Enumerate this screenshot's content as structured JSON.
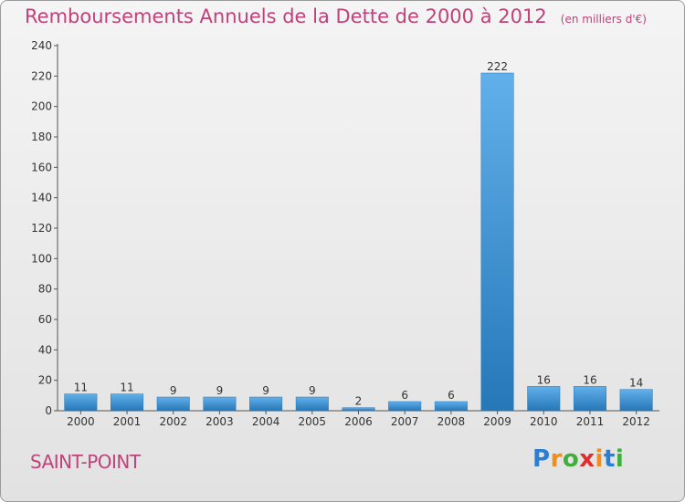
{
  "title": "Remboursements Annuels de la Dette de 2000 à 2012",
  "unit_note": "(en milliers d'€)",
  "place_name": "SAINT-POINT",
  "logo": {
    "letters": [
      "P",
      "r",
      "o",
      "x",
      "i",
      "t",
      "i"
    ],
    "colors": [
      "#2a7fd4",
      "#f28c1a",
      "#3fae3a",
      "#e02e2e",
      "#f28c1a",
      "#2a7fd4",
      "#3fae3a"
    ]
  },
  "colors": {
    "bar": "#3a8fd8",
    "bar_light": "#62b0ea",
    "bar_dark": "#2577b8",
    "text": "#333333",
    "accent": "#c0427a"
  },
  "chart_data": {
    "type": "bar",
    "title": "Remboursements Annuels de la Dette de 2000 à 2012",
    "xlabel": "",
    "ylabel": "",
    "categories": [
      "2000",
      "2001",
      "2002",
      "2003",
      "2004",
      "2005",
      "2006",
      "2007",
      "2008",
      "2009",
      "2010",
      "2011",
      "2012"
    ],
    "values": [
      11,
      11,
      9,
      9,
      9,
      9,
      2,
      6,
      6,
      222,
      16,
      16,
      14
    ],
    "data_labels": [
      "11",
      "11",
      "9",
      "9",
      "9",
      "9",
      "2",
      "6",
      "6",
      "222",
      "16",
      "16",
      "14"
    ],
    "ylim": [
      0,
      240
    ],
    "yticks": [
      0,
      20,
      40,
      60,
      80,
      100,
      120,
      140,
      160,
      180,
      200,
      220,
      240
    ],
    "ytick_labels": [
      "0",
      "20",
      "40",
      "60",
      "80",
      "100",
      "120",
      "140",
      "160",
      "180",
      "200",
      "220",
      "240"
    ],
    "grid": false,
    "legend": "none"
  }
}
